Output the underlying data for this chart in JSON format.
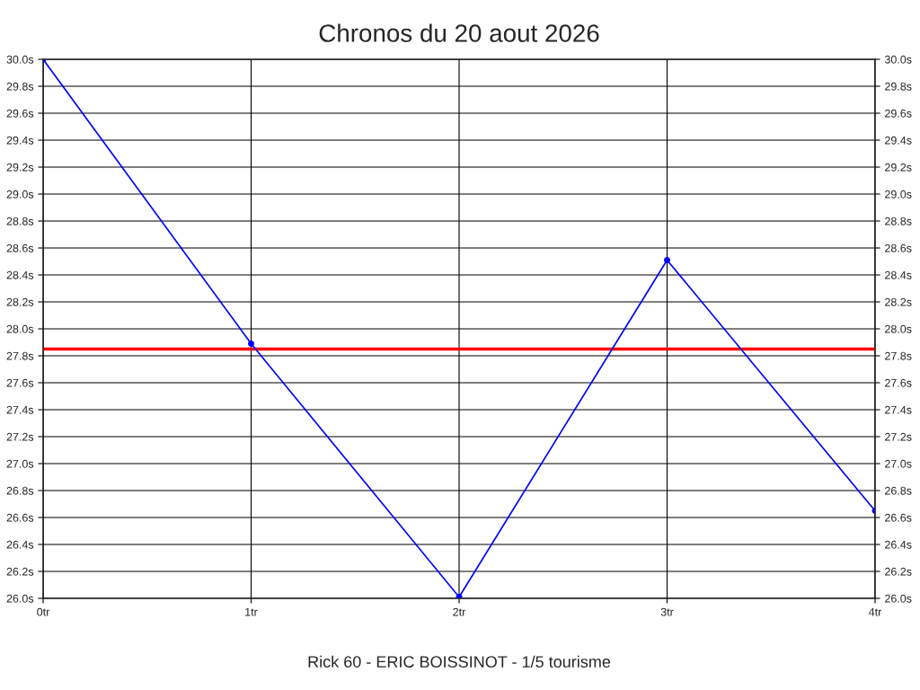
{
  "chart_data": {
    "type": "line",
    "title": "Chronos du 20 aout 2026",
    "xlabel": "Rick 60 - ERIC BOISSINOT - 1/5 tourisme",
    "x": [
      0,
      1,
      2,
      3,
      4
    ],
    "series": [
      {
        "color": "#0000ff",
        "values": [
          30.0,
          27.89,
          26.01,
          28.51,
          26.65
        ]
      }
    ],
    "marker": "circle",
    "line_style": "solid",
    "grid": true,
    "xlim": [
      0,
      4
    ],
    "xticks": [
      {
        "value": 0,
        "label": "0tr"
      },
      {
        "value": 1,
        "label": "1tr"
      },
      {
        "value": 2,
        "label": "2tr"
      },
      {
        "value": 3,
        "label": "3tr"
      },
      {
        "value": 4,
        "label": "4tr"
      }
    ],
    "ylim": [
      26.0,
      30.0
    ],
    "yticks": [
      {
        "value": 26.0,
        "label": "26.0s"
      },
      {
        "value": 26.2,
        "label": "26.2s"
      },
      {
        "value": 26.4,
        "label": "26.4s"
      },
      {
        "value": 26.6,
        "label": "26.6s"
      },
      {
        "value": 26.8,
        "label": "26.8s"
      },
      {
        "value": 27.0,
        "label": "27.0s"
      },
      {
        "value": 27.2,
        "label": "27.2s"
      },
      {
        "value": 27.4,
        "label": "27.4s"
      },
      {
        "value": 27.6,
        "label": "27.6s"
      },
      {
        "value": 27.8,
        "label": "27.8s"
      },
      {
        "value": 28.0,
        "label": "28.0s"
      },
      {
        "value": 28.2,
        "label": "28.2s"
      },
      {
        "value": 28.4,
        "label": "28.4s"
      },
      {
        "value": 28.6,
        "label": "28.6s"
      },
      {
        "value": 28.8,
        "label": "28.8s"
      },
      {
        "value": 29.0,
        "label": "29.0s"
      },
      {
        "value": 29.2,
        "label": "29.2s"
      },
      {
        "value": 29.4,
        "label": "29.4s"
      },
      {
        "value": 29.6,
        "label": "29.6s"
      },
      {
        "value": 29.8,
        "label": "29.8s"
      },
      {
        "value": 30.0,
        "label": "30.0s"
      }
    ],
    "y2lim": [
      26.0,
      30.0
    ],
    "y2ticks": [
      {
        "value": 26.0,
        "label": "26.0s"
      },
      {
        "value": 26.2,
        "label": "26.2s"
      },
      {
        "value": 26.4,
        "label": "26.4s"
      },
      {
        "value": 26.6,
        "label": "26.6s"
      },
      {
        "value": 26.8,
        "label": "26.8s"
      },
      {
        "value": 27.0,
        "label": "27.0s"
      },
      {
        "value": 27.2,
        "label": "27.2s"
      },
      {
        "value": 27.4,
        "label": "27.4s"
      },
      {
        "value": 27.6,
        "label": "27.6s"
      },
      {
        "value": 27.8,
        "label": "27.8s"
      },
      {
        "value": 28.0,
        "label": "28.0s"
      },
      {
        "value": 28.2,
        "label": "28.2s"
      },
      {
        "value": 28.4,
        "label": "28.4s"
      },
      {
        "value": 28.6,
        "label": "28.6s"
      },
      {
        "value": 28.8,
        "label": "28.8s"
      },
      {
        "value": 29.0,
        "label": "29.0s"
      },
      {
        "value": 29.2,
        "label": "29.2s"
      },
      {
        "value": 29.4,
        "label": "29.4s"
      },
      {
        "value": 29.6,
        "label": "29.6s"
      },
      {
        "value": 29.8,
        "label": "29.8s"
      },
      {
        "value": 30.0,
        "label": "30.0s"
      }
    ],
    "ref_lines": [
      {
        "axis": "y",
        "value": 27.85,
        "color": "#ff0000",
        "line_style": "solid"
      }
    ]
  }
}
